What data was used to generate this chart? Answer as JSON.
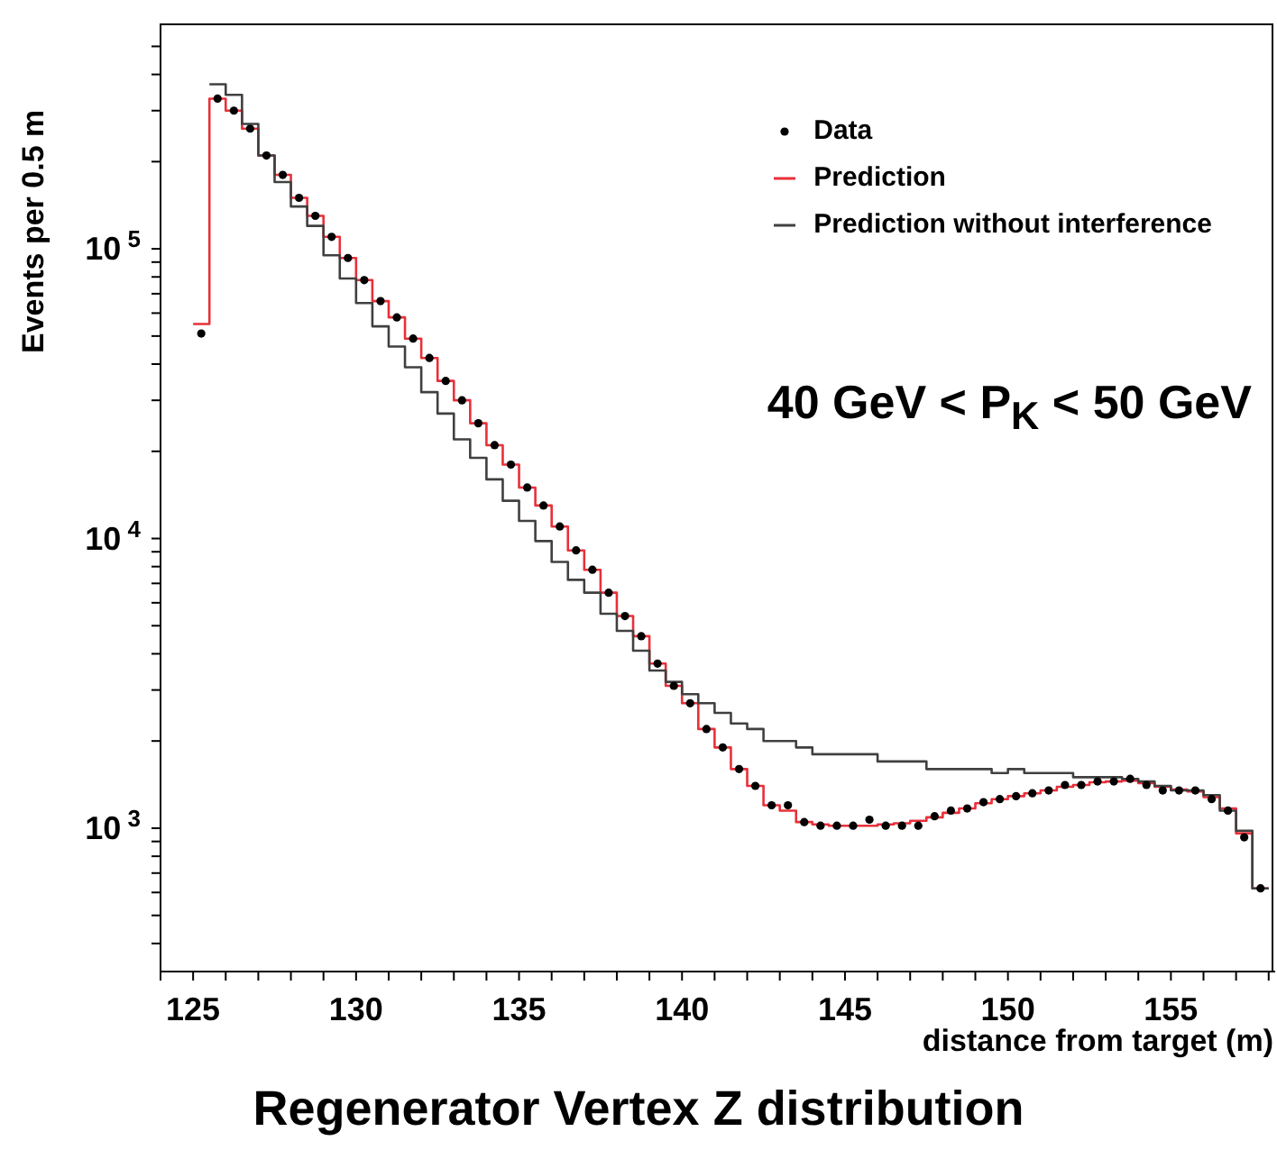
{
  "chart_data": {
    "type": "histogram",
    "title": "Regenerator Vertex Z distribution",
    "xlabel": "distance from target (m)",
    "ylabel": "Events per 0.5 m",
    "annotations": [
      "40 GeV < P$_{K}$ < 50 GeV"
    ],
    "bins": [
      125,
      125.5,
      126,
      126.5,
      127,
      127.5,
      128,
      128.5,
      129,
      129.5,
      130,
      130.5,
      131,
      131.5,
      132,
      132.5,
      133,
      133.5,
      134,
      134.5,
      135,
      135.5,
      136,
      136.5,
      137,
      137.5,
      138,
      138.5,
      139,
      139.5,
      140,
      140.5,
      141,
      141.5,
      142,
      142.5,
      143,
      143.5,
      144,
      144.5,
      145,
      145.5,
      146,
      146.5,
      147,
      147.5,
      148,
      148.5,
      149,
      149.5,
      150,
      150.5,
      151,
      151.5,
      152,
      152.5,
      153,
      153.5,
      154,
      154.5,
      155,
      155.5,
      156,
      156.5,
      157,
      157.5,
      158
    ],
    "series": [
      {
        "name": "Data",
        "type": "scatter",
        "color": "#000000",
        "x": [
          125.25,
          125.75,
          126.25,
          126.75,
          127.25,
          127.75,
          128.25,
          128.75,
          129.25,
          129.75,
          130.25,
          130.75,
          131.25,
          131.75,
          132.25,
          132.75,
          133.25,
          133.75,
          134.25,
          134.75,
          135.25,
          135.75,
          136.25,
          136.75,
          137.25,
          137.75,
          138.25,
          138.75,
          139.25,
          139.75,
          140.25,
          140.75,
          141.25,
          141.75,
          142.25,
          142.75,
          143.25,
          143.75,
          144.25,
          144.75,
          145.25,
          145.75,
          146.25,
          146.75,
          147.25,
          147.75,
          148.25,
          148.75,
          149.25,
          149.75,
          150.25,
          150.75,
          151.25,
          151.75,
          152.25,
          152.75,
          153.25,
          153.75,
          154.25,
          154.75,
          155.25,
          155.75,
          156.25,
          156.75,
          157.25,
          157.75
        ],
        "values": [
          51000,
          330000,
          300000,
          260000,
          210000,
          180000,
          150000,
          130000,
          110000,
          93000,
          78000,
          66000,
          58000,
          49000,
          42000,
          35000,
          30000,
          25000,
          21000,
          18000,
          15000,
          13000,
          11000,
          9100,
          7800,
          6500,
          5400,
          4600,
          3700,
          3100,
          2700,
          2200,
          1900,
          1600,
          1400,
          1200,
          1200,
          1050,
          1020,
          1020,
          1020,
          1070,
          1020,
          1020,
          1020,
          1100,
          1150,
          1170,
          1230,
          1260,
          1290,
          1320,
          1350,
          1410,
          1410,
          1450,
          1450,
          1480,
          1410,
          1350,
          1350,
          1350,
          1260,
          1150,
          930,
          620
        ]
      },
      {
        "name": "Prediction",
        "color": "#e8303a",
        "values": [
          55000,
          330000,
          300000,
          260000,
          210000,
          180000,
          150000,
          130000,
          110000,
          93000,
          78000,
          66000,
          58000,
          49000,
          42000,
          35000,
          30000,
          25000,
          21000,
          18000,
          15000,
          13000,
          11000,
          9100,
          7800,
          6500,
          5400,
          4600,
          3700,
          3100,
          2700,
          2200,
          1900,
          1600,
          1400,
          1200,
          1150,
          1050,
          1030,
          1020,
          1020,
          1020,
          1030,
          1040,
          1060,
          1090,
          1130,
          1170,
          1220,
          1260,
          1290,
          1320,
          1350,
          1390,
          1410,
          1440,
          1450,
          1460,
          1430,
          1390,
          1360,
          1340,
          1280,
          1170,
          960,
          620
        ]
      },
      {
        "name": "Prediction without interference",
        "color": "#404040",
        "bins": [
          125.5,
          126,
          126.5,
          127,
          127.5,
          128,
          128.5,
          129,
          129.5,
          130,
          130.5,
          131,
          131.5,
          132,
          132.5,
          133,
          133.5,
          134,
          134.5,
          135,
          135.5,
          136,
          136.5,
          137,
          137.5,
          138,
          138.5,
          139,
          139.5,
          140,
          140.5,
          141,
          141.5,
          142,
          142.5,
          143,
          143.5,
          144,
          144.5,
          145,
          145.5,
          146,
          146.5,
          147,
          147.5,
          148,
          148.5,
          149,
          149.5,
          150,
          150.5,
          151,
          151.5,
          152,
          152.5,
          153,
          153.5,
          154,
          154.5,
          155,
          155.5,
          156,
          156.5,
          157,
          157.5,
          158
        ],
        "values": [
          370000,
          340000,
          270000,
          210000,
          170000,
          140000,
          120000,
          95000,
          79000,
          65000,
          54000,
          46000,
          39000,
          32000,
          27000,
          22000,
          19000,
          16000,
          13500,
          11500,
          9800,
          8300,
          7200,
          6500,
          5500,
          4800,
          4100,
          3500,
          3200,
          2900,
          2700,
          2500,
          2300,
          2200,
          2000,
          2000,
          1900,
          1800,
          1800,
          1800,
          1800,
          1700,
          1700,
          1700,
          1600,
          1600,
          1600,
          1600,
          1550,
          1600,
          1550,
          1550,
          1550,
          1500,
          1500,
          1500,
          1480,
          1450,
          1400,
          1350,
          1350,
          1300,
          1150,
          980,
          620
        ]
      }
    ],
    "xlim": [
      124,
      158.2
    ],
    "xticks": [
      {
        "value": 124,
        "label": null
      },
      125,
      {
        "value": 126,
        "label": null
      },
      {
        "value": 127,
        "label": null
      },
      {
        "value": 128,
        "label": null
      },
      {
        "value": 129,
        "label": null
      },
      130,
      {
        "value": 131,
        "label": null
      },
      {
        "value": 132,
        "label": null
      },
      {
        "value": 133,
        "label": null
      },
      {
        "value": 134,
        "label": null
      },
      135,
      {
        "value": 136,
        "label": null
      },
      {
        "value": 137,
        "label": null
      },
      {
        "value": 138,
        "label": null
      },
      {
        "value": 139,
        "label": null
      },
      140,
      {
        "value": 141,
        "label": null
      },
      {
        "value": 142,
        "label": null
      },
      {
        "value": 143,
        "label": null
      },
      {
        "value": 144,
        "label": null
      },
      145,
      {
        "value": 146,
        "label": null
      },
      {
        "value": 147,
        "label": null
      },
      {
        "value": 148,
        "label": null
      },
      {
        "value": 149,
        "label": null
      },
      150,
      {
        "value": 151,
        "label": null
      },
      {
        "value": 152,
        "label": null
      },
      {
        "value": 153,
        "label": null
      },
      {
        "value": 154,
        "label": null
      },
      155,
      {
        "value": 156,
        "label": null
      },
      {
        "value": 157,
        "label": null
      },
      {
        "value": 158,
        "label": null
      }
    ],
    "ylim": [
      320,
      600000
    ],
    "yticks": [
      {
        "value": 400,
        "label": null
      },
      {
        "value": 500,
        "label": null
      },
      {
        "value": 600,
        "label": null
      },
      {
        "value": 700,
        "label": null
      },
      {
        "value": 800,
        "label": null
      },
      {
        "value": 900,
        "label": null
      },
      {
        "value": 1000,
        "label": "10$^{3}$"
      },
      {
        "value": 2000,
        "label": null
      },
      {
        "value": 3000,
        "label": null
      },
      {
        "value": 4000,
        "label": null
      },
      {
        "value": 5000,
        "label": null
      },
      {
        "value": 6000,
        "label": null
      },
      {
        "value": 7000,
        "label": null
      },
      {
        "value": 8000,
        "label": null
      },
      {
        "value": 9000,
        "label": null
      },
      {
        "value": 10000,
        "label": "10$^{4}$"
      },
      {
        "value": 20000,
        "label": null
      },
      {
        "value": 30000,
        "label": null
      },
      {
        "value": 40000,
        "label": null
      },
      {
        "value": 50000,
        "label": null
      },
      {
        "value": 60000,
        "label": null
      },
      {
        "value": 70000,
        "label": null
      },
      {
        "value": 80000,
        "label": null
      },
      {
        "value": 90000,
        "label": null
      },
      {
        "value": 100000,
        "label": "10$^{5}$"
      },
      {
        "value": 200000,
        "label": null
      },
      {
        "value": 300000,
        "label": null
      },
      {
        "value": 400000,
        "label": null
      },
      {
        "value": 500000,
        "label": null
      }
    ],
    "log": true,
    "marker": "circle",
    "legend": "top right"
  }
}
